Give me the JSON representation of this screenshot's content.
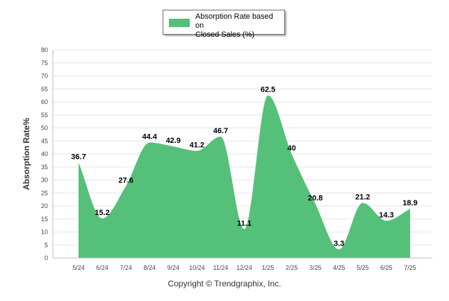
{
  "chart_data": {
    "type": "area",
    "categories": [
      "5/24",
      "6/24",
      "7/24",
      "8/24",
      "9/24",
      "10/24",
      "11/24",
      "12/24",
      "1/25",
      "2/25",
      "3/25",
      "4/25",
      "5/25",
      "6/25",
      "7/25"
    ],
    "series": [
      {
        "name": "Absorption Rate based on Closed Sales (%)",
        "values": [
          36.7,
          15.2,
          27.6,
          44.4,
          42.9,
          41.2,
          46.7,
          11.1,
          62.5,
          40,
          20.8,
          3.3,
          21.2,
          14.3,
          18.9
        ],
        "color": "#54c07a"
      }
    ],
    "ylabel": "Absorption Rate%",
    "ylim": [
      0,
      80
    ],
    "yticks": [
      0,
      5,
      10,
      15,
      20,
      25,
      30,
      35,
      40,
      45,
      50,
      55,
      60,
      65,
      70,
      75,
      80
    ],
    "grid": true,
    "legend_position": "top-center"
  },
  "legend": {
    "line1": "Absorption Rate based on",
    "line2": "Closed Sales (%)"
  },
  "copyright": "Copyright © Trendgraphix, Inc."
}
